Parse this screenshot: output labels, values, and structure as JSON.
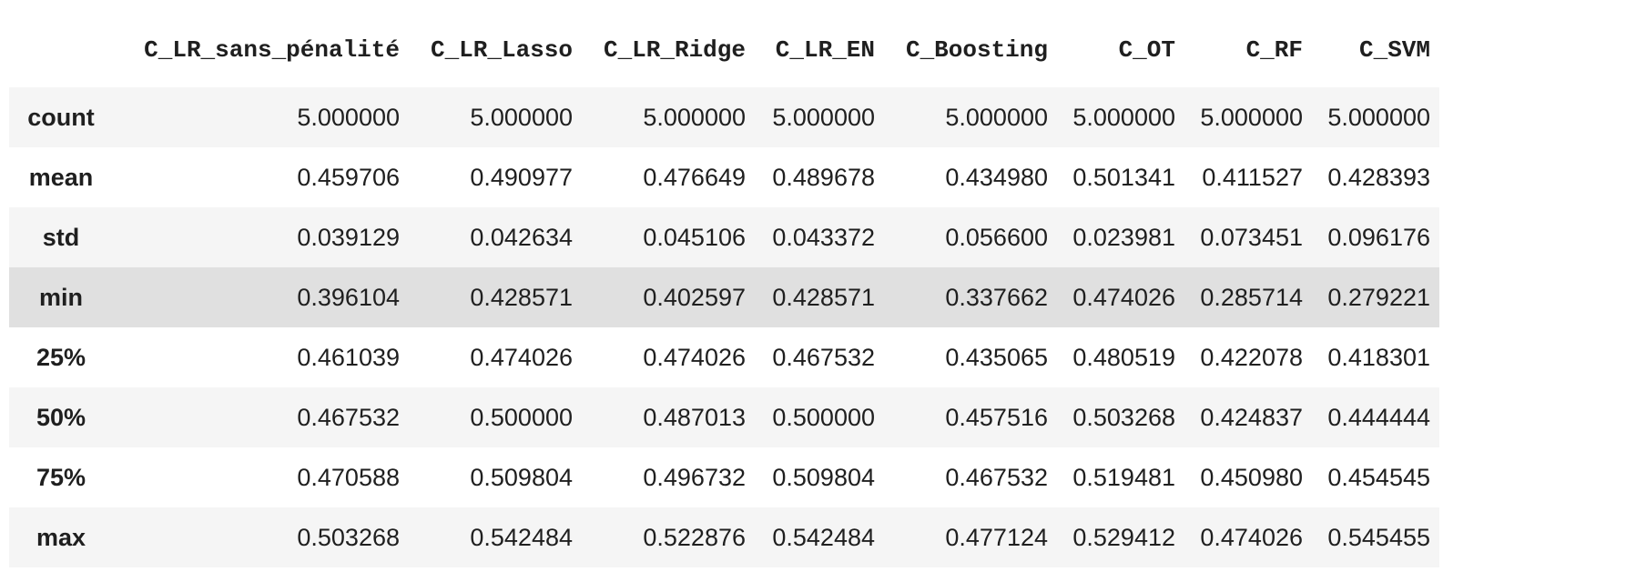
{
  "table": {
    "columns": [
      "C_LR_sans_pénalité",
      "C_LR_Lasso",
      "C_LR_Ridge",
      "C_LR_EN",
      "C_Boosting",
      "C_OT",
      "C_RF",
      "C_SVM"
    ],
    "rows": [
      {
        "label": "count",
        "values": [
          "5.000000",
          "5.000000",
          "5.000000",
          "5.000000",
          "5.000000",
          "5.000000",
          "5.000000",
          "5.000000"
        ]
      },
      {
        "label": "mean",
        "values": [
          "0.459706",
          "0.490977",
          "0.476649",
          "0.489678",
          "0.434980",
          "0.501341",
          "0.411527",
          "0.428393"
        ]
      },
      {
        "label": "std",
        "values": [
          "0.039129",
          "0.042634",
          "0.045106",
          "0.043372",
          "0.056600",
          "0.023981",
          "0.073451",
          "0.096176"
        ]
      },
      {
        "label": "min",
        "values": [
          "0.396104",
          "0.428571",
          "0.402597",
          "0.428571",
          "0.337662",
          "0.474026",
          "0.285714",
          "0.279221"
        ]
      },
      {
        "label": "25%",
        "values": [
          "0.461039",
          "0.474026",
          "0.474026",
          "0.467532",
          "0.435065",
          "0.480519",
          "0.422078",
          "0.418301"
        ]
      },
      {
        "label": "50%",
        "values": [
          "0.467532",
          "0.500000",
          "0.487013",
          "0.500000",
          "0.457516",
          "0.503268",
          "0.424837",
          "0.444444"
        ]
      },
      {
        "label": "75%",
        "values": [
          "0.470588",
          "0.509804",
          "0.496732",
          "0.509804",
          "0.467532",
          "0.519481",
          "0.450980",
          "0.454545"
        ]
      },
      {
        "label": "max",
        "values": [
          "0.503268",
          "0.542484",
          "0.522876",
          "0.542484",
          "0.477124",
          "0.529412",
          "0.474026",
          "0.545455"
        ]
      }
    ],
    "highlighted_row": "min"
  },
  "colors": {
    "text": "#1f1f1f",
    "row_odd": "#f5f5f5",
    "row_even": "#ffffff",
    "row_highlight": "#e0e0e0"
  }
}
